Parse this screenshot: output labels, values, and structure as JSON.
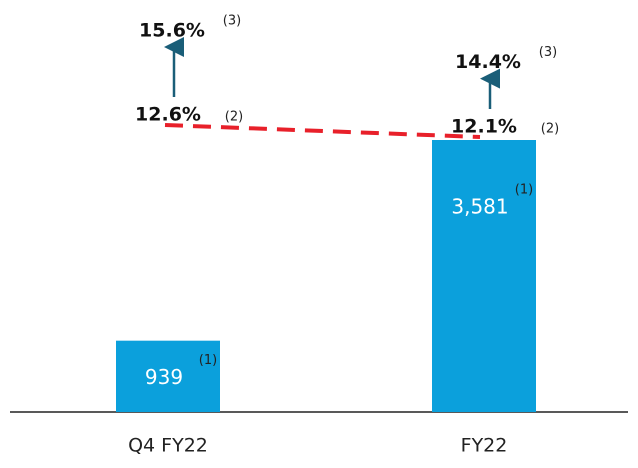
{
  "chart_data": {
    "type": "bar",
    "categories": [
      "Q4 FY22",
      "FY22"
    ],
    "values": [
      939,
      3581
    ],
    "value_labels": [
      "939",
      "3,581"
    ],
    "value_notes": [
      "(1)",
      "(1)"
    ],
    "color": "#0ba0dc",
    "margins": [
      {
        "value": 12.6,
        "label": "12.6%",
        "note": "(2)"
      },
      {
        "value": 12.1,
        "label": "12.1%",
        "note": "(2)"
      }
    ],
    "margin_line_color": "#e8202a",
    "adjusted_margins": [
      {
        "value": 15.6,
        "label": "15.6%",
        "note": "(3)"
      },
      {
        "value": 14.4,
        "label": "14.4%",
        "note": "(3)"
      }
    ],
    "arrow_color": "#1a5e78"
  }
}
